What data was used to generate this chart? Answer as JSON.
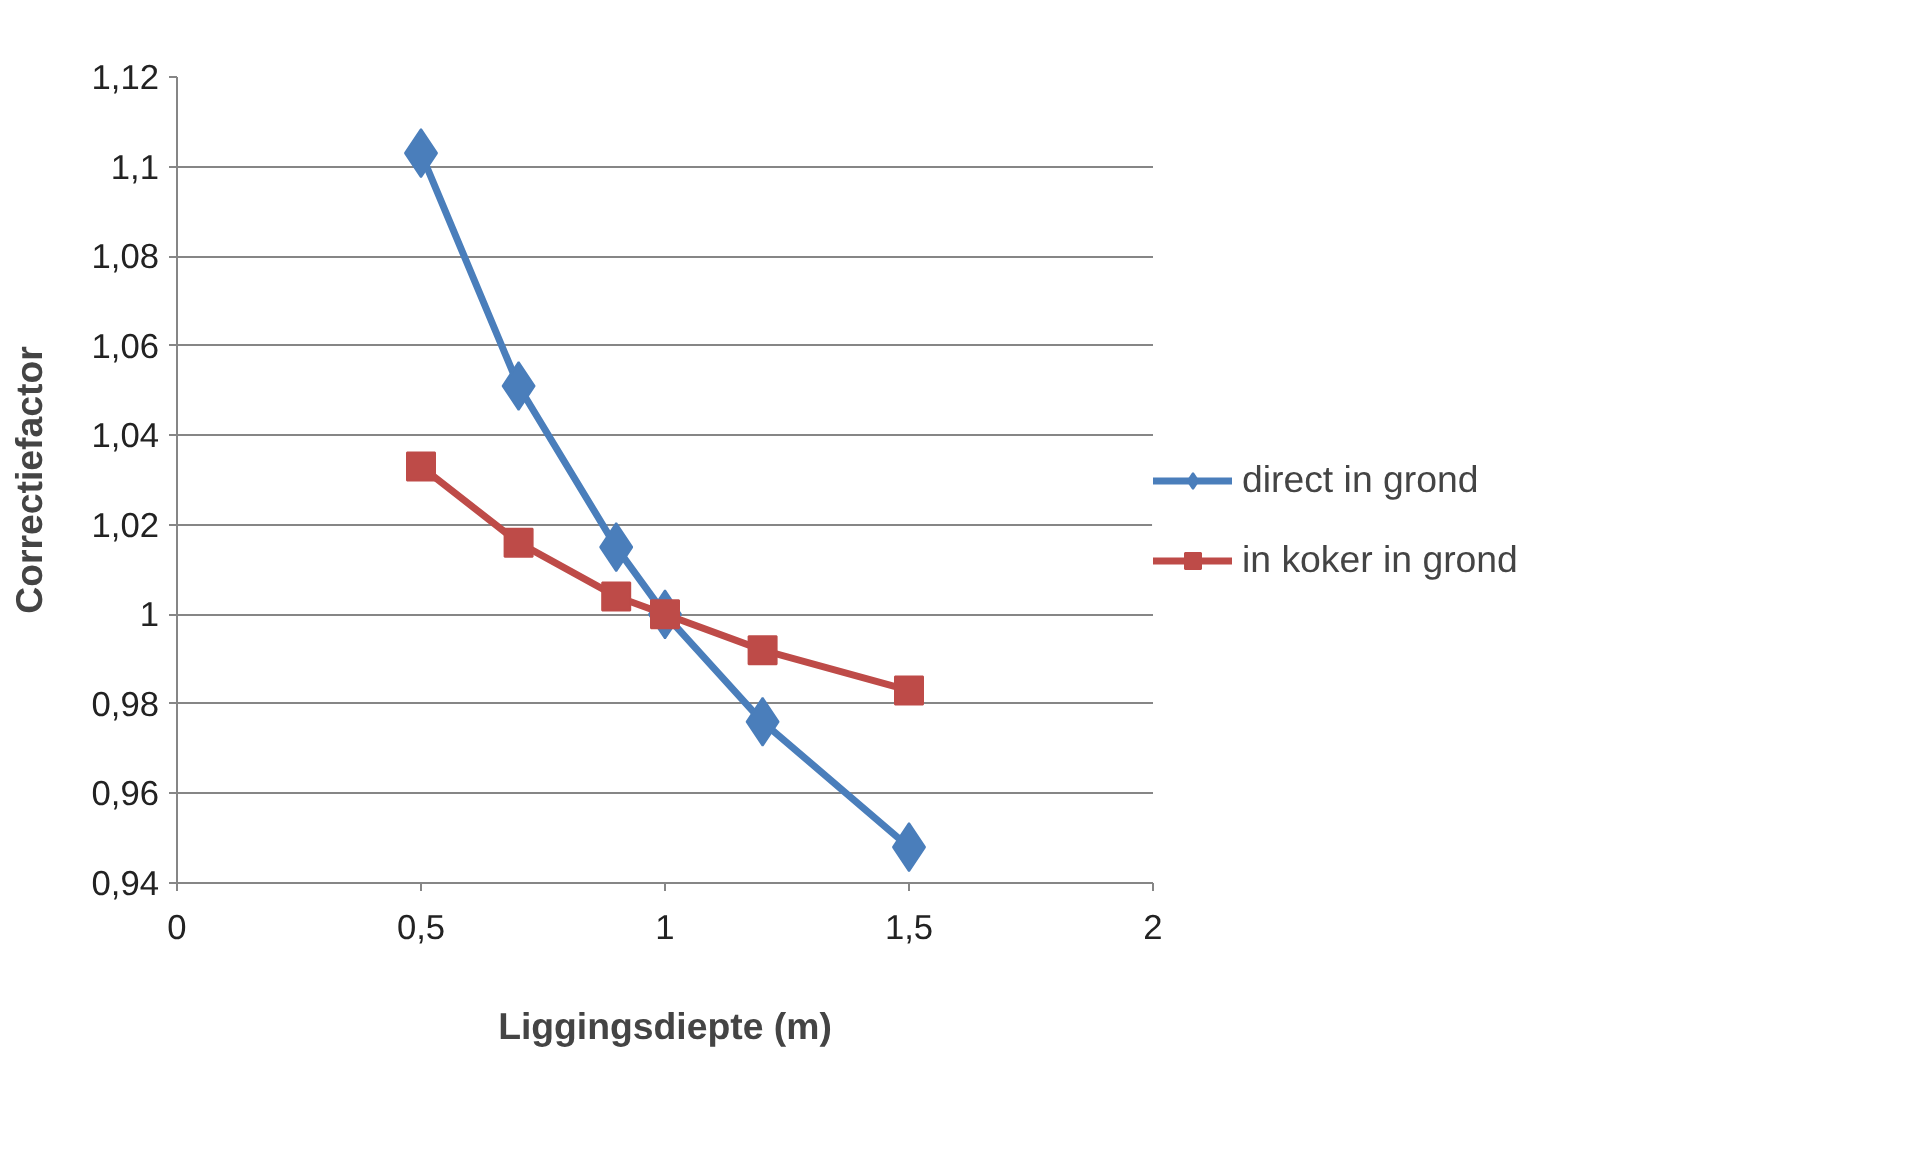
{
  "chart_data": {
    "type": "line",
    "xlabel": "Liggingsdiepte (m)",
    "ylabel": "Correctiefactor",
    "xlim": [
      0,
      2
    ],
    "xticks": [
      0,
      {
        "value": 0.5,
        "label": "0,5"
      },
      1,
      {
        "value": 1.5,
        "label": "1,5"
      },
      2
    ],
    "ylim": [
      0.94,
      1.12
    ],
    "yticks": [
      {
        "value": 0.94,
        "label": "0,94"
      },
      {
        "value": 0.96,
        "label": "0,96"
      },
      {
        "value": 0.98,
        "label": "0,98"
      },
      1,
      {
        "value": 1.02,
        "label": "1,02"
      },
      {
        "value": 1.04,
        "label": "1,04"
      },
      {
        "value": 1.06,
        "label": "1,06"
      },
      {
        "value": 1.08,
        "label": "1,08"
      },
      {
        "value": 1.1,
        "label": "1,1"
      },
      {
        "value": 1.12,
        "label": "1,12"
      }
    ],
    "grid": "y",
    "legend": "right",
    "line_style": "solid",
    "series": [
      {
        "name": "direct in grond",
        "color": "#4a7ebb",
        "marker": "diamond",
        "x": [
          0.5,
          0.7,
          0.9,
          1.0,
          1.2,
          1.5
        ],
        "values": [
          1.103,
          1.051,
          1.015,
          1.0,
          0.976,
          0.948
        ]
      },
      {
        "name": "in koker in grond",
        "color": "#be4b48",
        "marker": "square",
        "x": [
          0.5,
          0.7,
          0.9,
          1.0,
          1.2,
          1.5
        ],
        "values": [
          1.033,
          1.016,
          1.004,
          1.0,
          0.992,
          0.983
        ]
      }
    ]
  }
}
